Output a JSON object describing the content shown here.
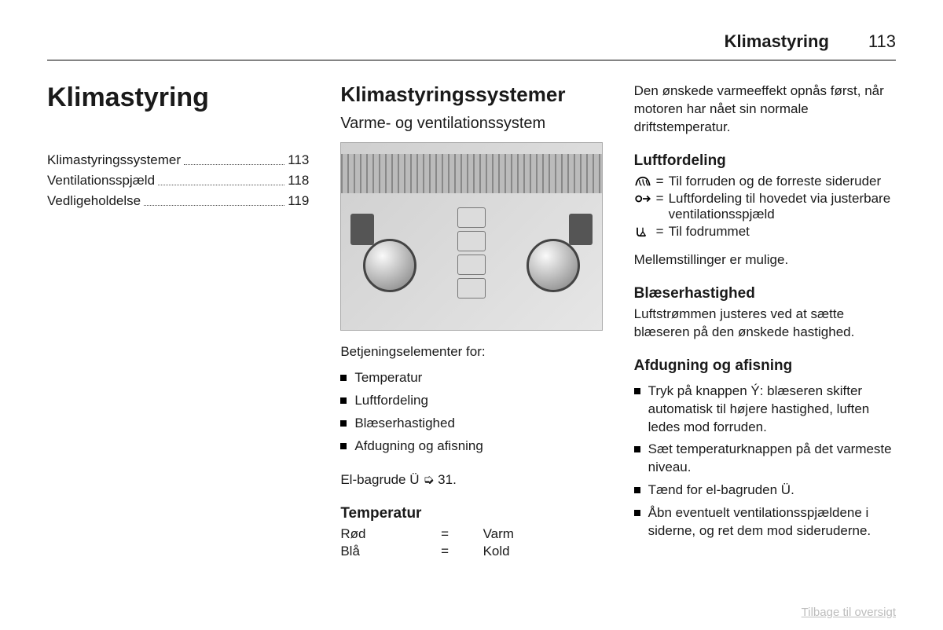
{
  "header": {
    "title": "Klimastyring",
    "page": "113"
  },
  "col1": {
    "chapter_title": "Klimastyring",
    "toc": [
      {
        "label": "Klimastyringssystemer",
        "page": "113"
      },
      {
        "label": "Ventilationsspjæld",
        "page": "118"
      },
      {
        "label": "Vedligeholdelse",
        "page": "119"
      }
    ]
  },
  "col2": {
    "section_title": "Klimastyringssystemer",
    "subsection_title": "Varme- og ventilationssystem",
    "controls_intro": "Betjeningselementer for:",
    "controls_items": [
      "Temperatur",
      "Luftfordeling",
      "Blæserhastighed",
      "Afdugning og afisning"
    ],
    "rear_window_text": "El-bagrude  Ü ➭ 31.",
    "temperature_heading": "Temperatur",
    "temperature_rows": [
      {
        "k": "Rød",
        "eq": "=",
        "v": "Varm"
      },
      {
        "k": "Blå",
        "eq": "=",
        "v": "Kold"
      }
    ]
  },
  "col3": {
    "intro_text": "Den ønskede varmeeffekt opnås først, når motoren har nået sin normale driftstemperatur.",
    "airdist_heading": "Luftfordeling",
    "airdist_rows": [
      {
        "icon": "windshield",
        "eq": "=",
        "text": "Til forruden og de forreste sideruder"
      },
      {
        "icon": "face",
        "eq": "=",
        "text": "Luftfordeling til hovedet via justerbare ventilationsspjæld"
      },
      {
        "icon": "floor",
        "eq": "=",
        "text": "Til fodrummet"
      }
    ],
    "airdist_note": "Mellemstillinger er mulige.",
    "fan_heading": "Blæserhastighed",
    "fan_text": "Luftstrømmen justeres ved at sætte blæseren på den ønskede hastighed.",
    "defog_heading": "Afdugning og afisning",
    "defog_items": [
      "Tryk på knappen Ý: blæseren skifter automatisk til højere hastighed, luften ledes mod forruden.",
      "Sæt temperaturknappen på det varmeste niveau.",
      "Tænd for el-bagruden Ü.",
      "Åbn eventuelt ventilationsspjældene i siderne, og ret dem mod sideruderne."
    ]
  },
  "footer_link": "Tilbage til oversigt"
}
